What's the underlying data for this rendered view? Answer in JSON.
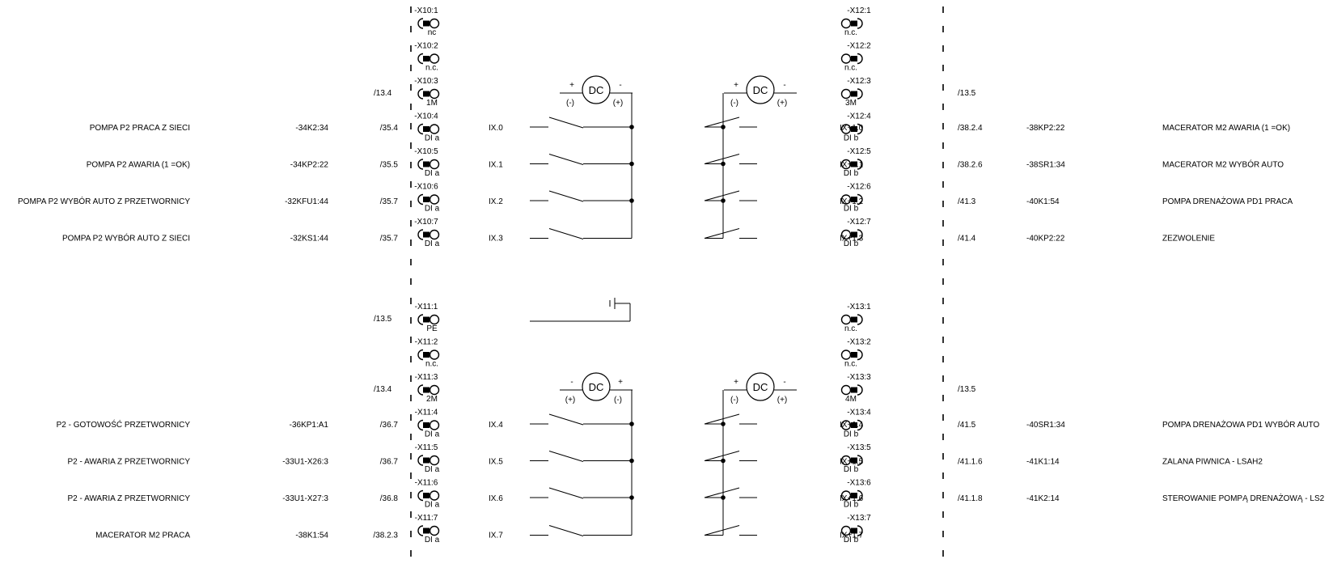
{
  "diagram": {
    "dc_label": "DC",
    "ground_lead_number": "1",
    "groups": [
      {
        "name": "upper",
        "left_terminals": [
          {
            "id": "-X10:1",
            "sub": "nc"
          },
          {
            "id": "-X10:2",
            "sub": "n.c."
          },
          {
            "id": "-X10:3",
            "sub": "1M"
          },
          {
            "id": "-X10:4",
            "sub": "DI a"
          },
          {
            "id": "-X10:5",
            "sub": "DI a"
          },
          {
            "id": "-X10:6",
            "sub": "DI a"
          },
          {
            "id": "-X10:7",
            "sub": "DI a"
          }
        ],
        "right_terminals": [
          {
            "id": "-X12:1",
            "sub": "n.c."
          },
          {
            "id": "-X12:2",
            "sub": "n.c."
          },
          {
            "id": "-X12:3",
            "sub": "3M"
          },
          {
            "id": "-X12:4",
            "sub": "DI b"
          },
          {
            "id": "-X12:5",
            "sub": "DI b"
          },
          {
            "id": "-X12:6",
            "sub": "DI b"
          },
          {
            "id": "-X12:7",
            "sub": "DI b"
          }
        ],
        "left_common_ref": "/13.4",
        "right_common_ref": "/13.5",
        "left_dc": {
          "plus": "+",
          "minus": "-",
          "plus_paren": "(-)",
          "minus_paren": "(+)"
        },
        "right_dc": {
          "plus": "+",
          "minus": "-",
          "plus_paren": "(-)",
          "minus_paren": "(+)"
        },
        "left_inputs": [
          {
            "description": "POMPA P2 PRACA Z SIECI",
            "device": "-34K2:34",
            "page_ref": "/35.4",
            "address": "IX.0"
          },
          {
            "description": "POMPA P2 AWARIA (1 =OK)",
            "device": "-34KP2:22",
            "page_ref": "/35.5",
            "address": "IX.1"
          },
          {
            "description": "POMPA P2 WYBÓR AUTO Z PRZETWORNICY",
            "device": "-32KFU1:44",
            "page_ref": "/35.7",
            "address": "IX.2"
          },
          {
            "description": "POMPA P2 WYBÓR AUTO Z SIECI",
            "device": "-32KS1:44",
            "page_ref": "/35.7",
            "address": "IX.3"
          }
        ],
        "right_inputs": [
          {
            "address": "IX+1.0",
            "page_ref": "/38.2.4",
            "device": "-38KP2:22",
            "description": "MACERATOR M2 AWARIA (1 =OK)"
          },
          {
            "address": "IX+1.1",
            "page_ref": "/38.2.6",
            "device": "-38SR1:34",
            "description": "MACERATOR M2 WYBÓR AUTO"
          },
          {
            "address": "IX+1.2",
            "page_ref": "/41.3",
            "device": "-40K1:54",
            "description": "POMPA DRENAŻOWA PD1 PRACA"
          },
          {
            "address": "IX+1.3",
            "page_ref": "/41.4",
            "device": "-40KP2:22",
            "description": "ZEZWOLENIE"
          }
        ]
      },
      {
        "name": "lower",
        "left_terminals": [
          {
            "id": "-X11:1",
            "sub": "PE"
          },
          {
            "id": "-X11:2",
            "sub": "n.c."
          },
          {
            "id": "-X11:3",
            "sub": "2M"
          },
          {
            "id": "-X11:4",
            "sub": "DI a"
          },
          {
            "id": "-X11:5",
            "sub": "DI a"
          },
          {
            "id": "-X11:6",
            "sub": "DI a"
          },
          {
            "id": "-X11:7",
            "sub": "DI a"
          }
        ],
        "right_terminals": [
          {
            "id": "-X13:1",
            "sub": "n.c."
          },
          {
            "id": "-X13:2",
            "sub": "n.c."
          },
          {
            "id": "-X13:3",
            "sub": "4M"
          },
          {
            "id": "-X13:4",
            "sub": "DI b"
          },
          {
            "id": "-X13:5",
            "sub": "DI b"
          },
          {
            "id": "-X13:6",
            "sub": "DI b"
          },
          {
            "id": "-X13:7",
            "sub": "DI b"
          }
        ],
        "left_pe_ref": "/13.5",
        "left_common_ref": "/13.4",
        "right_common_ref": "/13.5",
        "left_dc": {
          "plus": "-",
          "minus": "+",
          "plus_paren": "(+)",
          "minus_paren": "(-)"
        },
        "right_dc": {
          "plus": "+",
          "minus": "-",
          "plus_paren": "(-)",
          "minus_paren": "(+)"
        },
        "left_inputs": [
          {
            "description": "P2 - GOTOWOŚĆ PRZETWORNICY",
            "device": "-36KP1:A1",
            "page_ref": "/36.7",
            "address": "IX.4"
          },
          {
            "description": "P2 - AWARIA Z PRZETWORNICY",
            "device": "-33U1-X26:3",
            "page_ref": "/36.7",
            "address": "IX.5"
          },
          {
            "description": "P2 - AWARIA Z PRZETWORNICY",
            "device": "-33U1-X27:3",
            "page_ref": "/36.8",
            "address": "IX.6"
          },
          {
            "description": "MACERATOR M2 PRACA",
            "device": "-38K1:54",
            "page_ref": "/38.2.3",
            "address": "IX.7"
          }
        ],
        "right_inputs": [
          {
            "address": "IX+1.4",
            "page_ref": "/41.5",
            "device": "-40SR1:34",
            "description": "POMPA DRENAŻOWA PD1 WYBÓR AUTO"
          },
          {
            "address": "IX+1.5",
            "page_ref": "/41.1.6",
            "device": "-41K1:14",
            "description": "ZALANA PIWNICA - LSAH2"
          },
          {
            "address": "IX+1.6",
            "page_ref": "/41.1.8",
            "device": "-41K2:14",
            "description": "STEROWANIE POMPĄ DRENAŻOWĄ - LS2"
          },
          {
            "address": "IX+1.7",
            "page_ref": "",
            "device": "",
            "description": ""
          }
        ]
      }
    ]
  }
}
